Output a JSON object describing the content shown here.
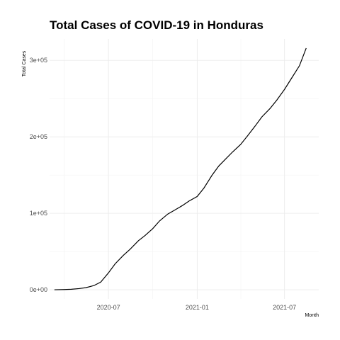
{
  "chart_data": {
    "type": "line",
    "title": "Total Cases of COVID-19 in Honduras",
    "xlabel": "Month",
    "ylabel": "Total Cases",
    "x_ticks": [
      "2020-07",
      "2021-01",
      "2021-07"
    ],
    "y_ticks": [
      "0e+00",
      "1e+05",
      "2e+05",
      "3e+05"
    ],
    "y_tick_values": [
      0,
      100000,
      200000,
      300000
    ],
    "xlim": [
      "2020-03-01",
      "2021-09-10"
    ],
    "ylim": [
      -12000,
      328000
    ],
    "grid": true,
    "series": [
      {
        "color": "#000000",
        "x": [
          "2020-03-11",
          "2020-04-01",
          "2020-04-15",
          "2020-05-01",
          "2020-05-15",
          "2020-06-01",
          "2020-06-15",
          "2020-07-01",
          "2020-07-15",
          "2020-08-01",
          "2020-08-15",
          "2020-09-01",
          "2020-09-15",
          "2020-10-01",
          "2020-10-15",
          "2020-11-01",
          "2020-11-15",
          "2020-12-01",
          "2020-12-15",
          "2021-01-01",
          "2021-01-15",
          "2021-02-01",
          "2021-02-15",
          "2021-03-01",
          "2021-03-15",
          "2021-04-01",
          "2021-04-15",
          "2021-05-01",
          "2021-05-15",
          "2021-06-01",
          "2021-06-15",
          "2021-07-01",
          "2021-07-15",
          "2021-08-01",
          "2021-08-15"
        ],
        "y": [
          0,
          300,
          600,
          1500,
          2700,
          5500,
          10000,
          22000,
          34000,
          45000,
          53000,
          64000,
          71000,
          80000,
          90000,
          99000,
          104000,
          110000,
          116000,
          122000,
          133000,
          150000,
          162000,
          171000,
          180000,
          190000,
          201000,
          214000,
          226000,
          237000,
          248000,
          262000,
          276000,
          293000,
          316000
        ]
      }
    ]
  }
}
